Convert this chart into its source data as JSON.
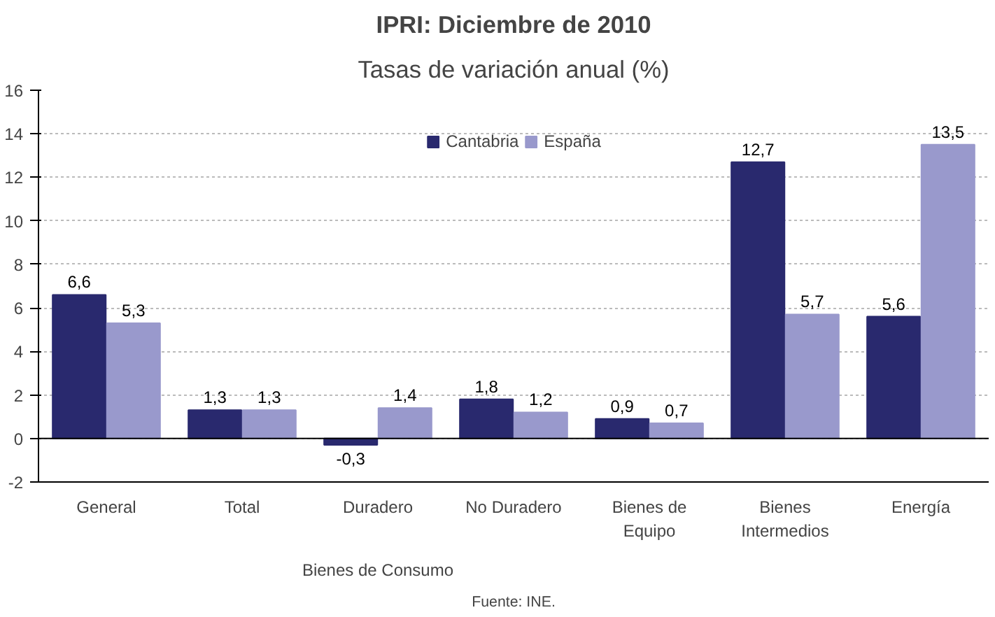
{
  "chart_data": {
    "type": "bar",
    "title": "IPRI: Diciembre de 2010",
    "subtitle": "Tasas de variación anual (%)",
    "categories": [
      "General",
      "Total",
      "Duradero",
      "No Duradero",
      "Bienes de\nEquipo",
      "Bienes\nIntermedios",
      "Energía"
    ],
    "series": [
      {
        "name": "Cantabria",
        "color": "#29296e",
        "values": [
          6.6,
          1.3,
          -0.3,
          1.8,
          0.9,
          12.7,
          5.6
        ],
        "value_labels": [
          "6,6",
          "1,3",
          "-0,3",
          "1,8",
          "0,9",
          "12,7",
          "5,6"
        ]
      },
      {
        "name": "España",
        "color": "#9999cc",
        "values": [
          5.3,
          1.3,
          1.4,
          1.2,
          0.7,
          5.7,
          13.5
        ],
        "value_labels": [
          "5,3",
          "1,3",
          "1,4",
          "1,2",
          "0,7",
          "5,7",
          "13,5"
        ]
      }
    ],
    "ylim": [
      -2,
      16
    ],
    "yticks": [
      -2,
      0,
      2,
      4,
      6,
      8,
      10,
      12,
      14,
      16
    ],
    "grid": "y",
    "legend": "top",
    "annotations": [
      "Bienes de Consumo",
      "Fuente: INE."
    ]
  }
}
